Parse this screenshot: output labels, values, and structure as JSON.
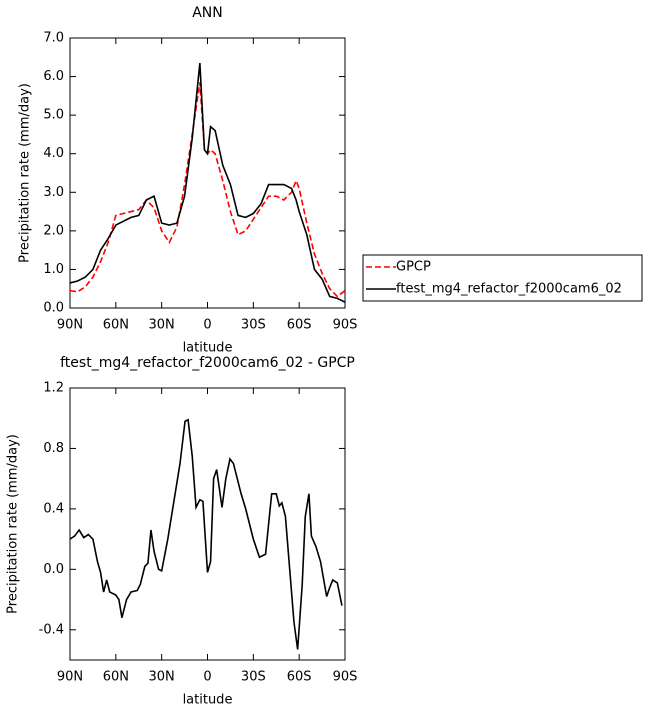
{
  "chart_data": [
    {
      "type": "line",
      "title": "ANN",
      "xlabel": "latitude",
      "ylabel": "Precipitation rate (mm/day)",
      "x": [
        90,
        85,
        80,
        75,
        70,
        65,
        60,
        55,
        50,
        45,
        40,
        35,
        30,
        25,
        20,
        15,
        10,
        5,
        2,
        0,
        -2,
        -5,
        -10,
        -15,
        -20,
        -25,
        -30,
        -35,
        -40,
        -45,
        -50,
        -55,
        -58,
        -60,
        -65,
        -70,
        -75,
        -80,
        -85,
        -90
      ],
      "series": [
        {
          "name": "GPCP",
          "color": "#ff0000",
          "dash": true,
          "values": [
            0.45,
            0.42,
            0.55,
            0.8,
            1.2,
            1.7,
            2.4,
            2.45,
            2.5,
            2.55,
            2.8,
            2.6,
            2.0,
            1.7,
            2.1,
            3.2,
            4.5,
            5.85,
            4.1,
            4.0,
            4.1,
            4.0,
            3.3,
            2.5,
            1.9,
            2.0,
            2.3,
            2.6,
            2.9,
            2.9,
            2.8,
            3.0,
            3.3,
            3.1,
            2.2,
            1.4,
            0.9,
            0.5,
            0.3,
            0.45
          ]
        },
        {
          "name": "ftest_mg4_refactor_f2000cam6_02",
          "color": "#000000",
          "dash": false,
          "values": [
            0.65,
            0.7,
            0.8,
            1.0,
            1.5,
            1.8,
            2.15,
            2.25,
            2.35,
            2.4,
            2.8,
            2.9,
            2.2,
            2.15,
            2.2,
            2.9,
            4.4,
            6.35,
            4.1,
            4.0,
            4.7,
            4.6,
            3.7,
            3.2,
            2.4,
            2.35,
            2.45,
            2.7,
            3.2,
            3.2,
            3.2,
            3.1,
            2.8,
            2.5,
            1.9,
            1.0,
            0.75,
            0.3,
            0.25,
            0.15
          ]
        }
      ],
      "xlim": [
        90,
        -90
      ],
      "xticks": [
        {
          "value": 90,
          "label": "90N"
        },
        {
          "value": 60,
          "label": "60N"
        },
        {
          "value": 30,
          "label": "30N"
        },
        0,
        {
          "value": -30,
          "label": "30S"
        },
        {
          "value": -60,
          "label": "60S"
        },
        {
          "value": -90,
          "label": "90S"
        }
      ],
      "ylim": [
        0,
        7
      ],
      "yticks": [
        {
          "value": 0,
          "label": "0.0"
        },
        {
          "value": 1,
          "label": "1.0"
        },
        {
          "value": 2,
          "label": "2.0"
        },
        {
          "value": 3,
          "label": "3.0"
        },
        {
          "value": 4,
          "label": "4.0"
        },
        {
          "value": 5,
          "label": "5.0"
        },
        {
          "value": 6,
          "label": "6.0"
        },
        {
          "value": 7,
          "label": "7.0"
        }
      ],
      "legend": "right"
    },
    {
      "type": "line",
      "title": "ftest_mg4_refactor_f2000cam6_02 - GPCP",
      "xlabel": "latitude",
      "ylabel": "Precipitation rate (mm/day)",
      "x": [
        90,
        87,
        84,
        81,
        78,
        75,
        72,
        70,
        68,
        66,
        64,
        60,
        58,
        56,
        53,
        50,
        46,
        44,
        41,
        39,
        37,
        35,
        32,
        30,
        26,
        22,
        18,
        14.7,
        12.7,
        10,
        7.5,
        5,
        3,
        0,
        -2,
        -4,
        -6,
        -9.5,
        -12,
        -14.7,
        -17,
        -22,
        -25,
        -30,
        -34,
        -38,
        -42,
        -45,
        -47,
        -48.7,
        -51,
        -53,
        -56.6,
        -59,
        -62,
        -64,
        -66.4,
        -68,
        -71,
        -74,
        -78,
        -80,
        -82,
        -85,
        -88
      ],
      "color": "#000000",
      "values": [
        0.2,
        0.22,
        0.26,
        0.21,
        0.23,
        0.2,
        0.05,
        -0.02,
        -0.15,
        -0.07,
        -0.15,
        -0.17,
        -0.2,
        -0.32,
        -0.2,
        -0.15,
        -0.14,
        -0.1,
        0.02,
        0.04,
        0.26,
        0.12,
        0.0,
        -0.01,
        0.2,
        0.45,
        0.7,
        0.98,
        0.99,
        0.75,
        0.41,
        0.46,
        0.45,
        -0.02,
        0.05,
        0.6,
        0.66,
        0.41,
        0.6,
        0.73,
        0.7,
        0.5,
        0.4,
        0.2,
        0.08,
        0.1,
        0.5,
        0.5,
        0.42,
        0.44,
        0.35,
        0.1,
        -0.35,
        -0.53,
        -0.1,
        0.35,
        0.5,
        0.22,
        0.15,
        0.05,
        -0.18,
        -0.12,
        -0.07,
        -0.09,
        -0.24
      ],
      "xlim": [
        90,
        -90
      ],
      "xticks": [
        {
          "value": 90,
          "label": "90N"
        },
        {
          "value": 60,
          "label": "60N"
        },
        {
          "value": 30,
          "label": "30N"
        },
        0,
        {
          "value": -30,
          "label": "30S"
        },
        {
          "value": -60,
          "label": "60S"
        },
        {
          "value": -90,
          "label": "90S"
        }
      ],
      "ylim": [
        -0.6,
        1.2
      ],
      "yticks": [
        -0.4,
        {
          "value": 0,
          "label": "0.0"
        },
        0.4,
        0.8,
        1.2
      ]
    }
  ]
}
